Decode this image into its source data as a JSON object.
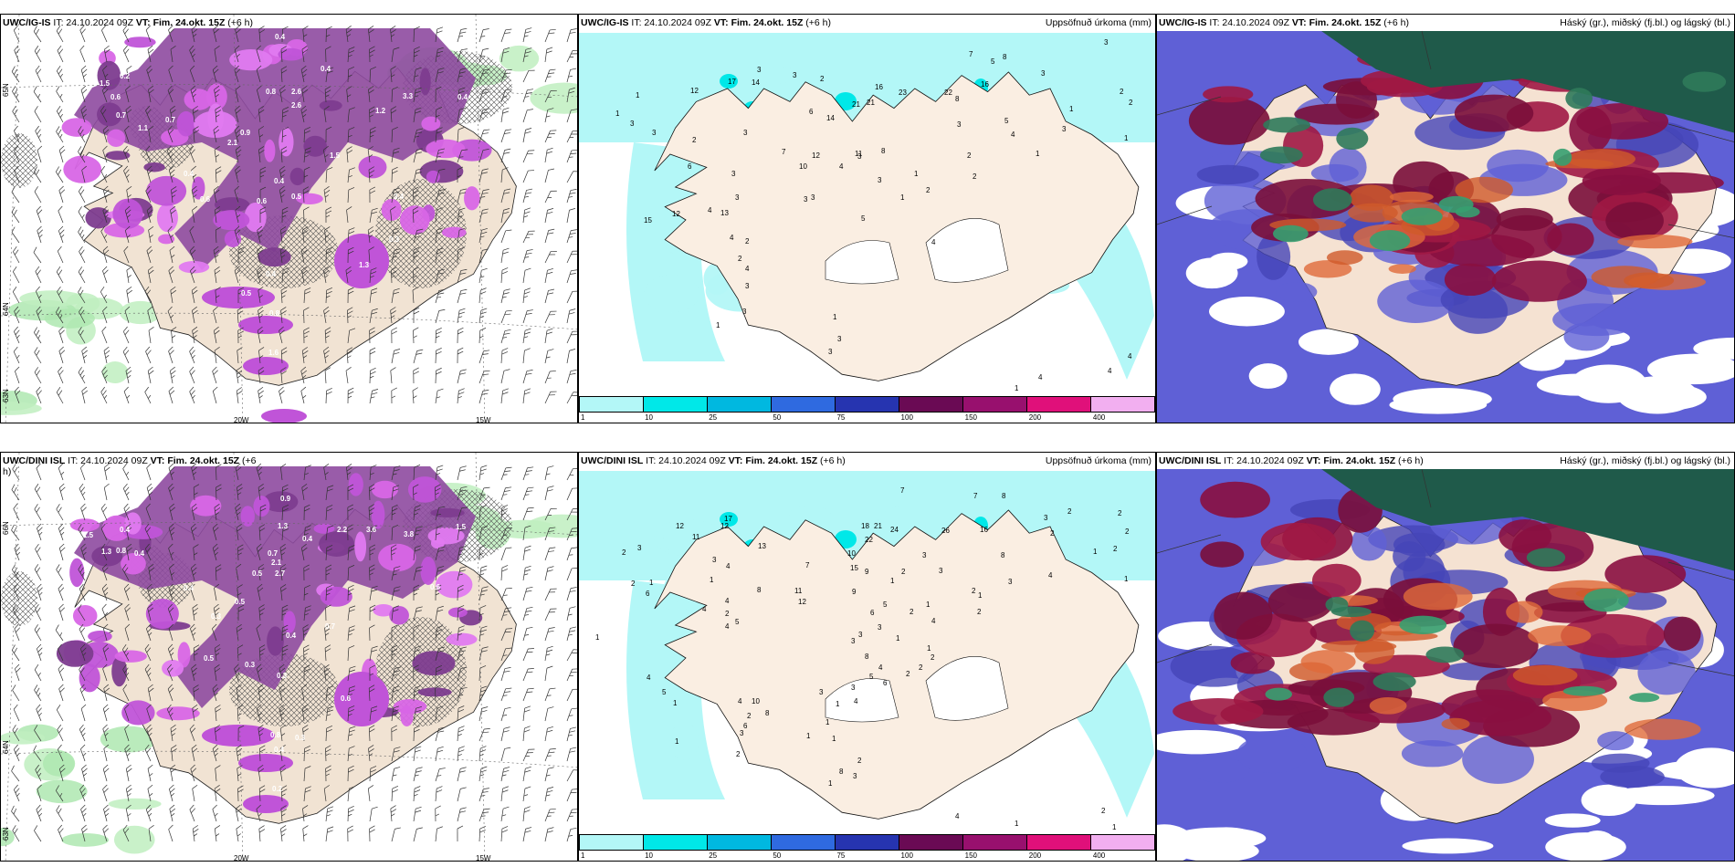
{
  "top": {
    "left": {
      "model": "UWC/IG-IS",
      "it": "IT: 24.10.2024 09Z",
      "vt": "VT: Fim. 24.okt. 15Z",
      "step": "(+6 h)",
      "labels": [
        [
          "0.4",
          300,
          42
        ],
        [
          "0.4",
          350,
          77
        ],
        [
          "0.2",
          130,
          85
        ],
        [
          "1.5",
          108,
          93
        ],
        [
          "0.7",
          126,
          128
        ],
        [
          "0.6",
          120,
          108
        ],
        [
          "0.8",
          290,
          102
        ],
        [
          "2.6",
          318,
          102
        ],
        [
          "3.3",
          440,
          107
        ],
        [
          "0.4",
          500,
          108
        ],
        [
          "1.2",
          410,
          123
        ],
        [
          "2.6",
          318,
          117
        ],
        [
          "1.1",
          150,
          142
        ],
        [
          "0.7",
          180,
          133
        ],
        [
          "0.9",
          262,
          147
        ],
        [
          "0.4",
          200,
          192
        ],
        [
          "0.6",
          218,
          220
        ],
        [
          "0.4",
          299,
          200
        ],
        [
          "0.5",
          318,
          217
        ],
        [
          "1.5",
          360,
          172
        ],
        [
          "2.1",
          248,
          158
        ],
        [
          "0.6",
          280,
          222
        ],
        [
          "3.4",
          430,
          217
        ],
        [
          "1.3",
          392,
          292
        ],
        [
          "0.4",
          290,
          302
        ],
        [
          "0.5",
          263,
          323
        ],
        [
          "0.8",
          294,
          345
        ],
        [
          "1.6",
          293,
          388
        ],
        [
          "0.6",
          310,
          447
        ],
        [
          "0.3",
          425,
          264
        ]
      ],
      "axis": {
        "lon1": "20W",
        "lon2": "15W",
        "lat1": "65N",
        "lat2": "64N",
        "lat3": "63N"
      }
    },
    "middle": {
      "model": "UWC/IG-IS",
      "it": "IT: 24.10.2024 09Z",
      "vt": "VT: Fim. 24.okt. 15Z",
      "step": "(+6 h)",
      "right": "Uppsöfnuð úrkoma (mm)",
      "labels": [
        [
          "3",
          1208,
          48
        ],
        [
          "7",
          1060,
          61
        ],
        [
          "5",
          1084,
          69
        ],
        [
          "8",
          1097,
          64
        ],
        [
          "3",
          1139,
          82
        ],
        [
          "2",
          1225,
          102
        ],
        [
          "2",
          1235,
          114
        ],
        [
          "1",
          1170,
          121
        ],
        [
          "1",
          1230,
          153
        ],
        [
          "1",
          695,
          106
        ],
        [
          "12",
          755,
          101
        ],
        [
          "17",
          796,
          91
        ],
        [
          "14",
          822,
          92
        ],
        [
          "3",
          828,
          78
        ],
        [
          "3",
          867,
          84
        ],
        [
          "2",
          897,
          88
        ],
        [
          "6",
          885,
          124
        ],
        [
          "14",
          904,
          131
        ],
        [
          "21",
          932,
          116
        ],
        [
          "21",
          948,
          114
        ],
        [
          "16",
          957,
          97
        ],
        [
          "23",
          983,
          103
        ],
        [
          "22",
          1033,
          103
        ],
        [
          "16",
          1073,
          94
        ],
        [
          "8",
          1045,
          110
        ],
        [
          "3",
          1047,
          138
        ],
        [
          "4",
          1106,
          149
        ],
        [
          "5",
          1099,
          134
        ],
        [
          "3",
          1162,
          143
        ],
        [
          "1",
          1133,
          170
        ],
        [
          "2",
          1058,
          172
        ],
        [
          "2",
          1064,
          195
        ],
        [
          "1",
          673,
          126
        ],
        [
          "3",
          689,
          137
        ],
        [
          "3",
          713,
          147
        ],
        [
          "11",
          935,
          170
        ],
        [
          "3",
          938,
          173
        ],
        [
          "8",
          964,
          167
        ],
        [
          "4",
          918,
          184
        ],
        [
          "12",
          888,
          172
        ],
        [
          "10",
          874,
          184
        ],
        [
          "3",
          887,
          218
        ],
        [
          "7",
          855,
          168
        ],
        [
          "3",
          813,
          147
        ],
        [
          "2",
          757,
          155
        ],
        [
          "6",
          752,
          184
        ],
        [
          "3",
          800,
          192
        ],
        [
          "3",
          804,
          218
        ],
        [
          "4",
          774,
          232
        ],
        [
          "13",
          788,
          235
        ],
        [
          "12",
          735,
          236
        ],
        [
          "15",
          704,
          243
        ],
        [
          "4",
          798,
          262
        ],
        [
          "2",
          815,
          266
        ],
        [
          "3",
          879,
          220
        ],
        [
          "5",
          942,
          241
        ],
        [
          "1",
          985,
          218
        ],
        [
          "3",
          960,
          199
        ],
        [
          "2",
          1013,
          210
        ],
        [
          "1",
          1000,
          192
        ],
        [
          "4",
          1019,
          267
        ],
        [
          "2",
          807,
          285
        ],
        [
          "4",
          815,
          296
        ],
        [
          "3",
          815,
          315
        ],
        [
          "3",
          812,
          343
        ],
        [
          "1",
          783,
          358
        ],
        [
          "1",
          911,
          349
        ],
        [
          "3",
          916,
          373
        ],
        [
          "3",
          906,
          387
        ],
        [
          "4",
          1136,
          415
        ],
        [
          "4",
          1212,
          408
        ],
        [
          "4",
          1234,
          392
        ],
        [
          "1",
          1110,
          427
        ]
      ]
    },
    "right": {
      "model": "UWC/IG-IS",
      "it": "IT: 24.10.2024 09Z",
      "vt": "VT: Fim. 24.okt. 15Z",
      "step": "(+6 h)",
      "right": "Háský (gr.), miðský (fj.bl.) og lágský (bl.)"
    }
  },
  "bottom": {
    "left": {
      "model": "UWC/DINI ISL",
      "it": "IT: 24.10.2024 09Z",
      "vt": "VT: Fim. 24.okt. 15Z",
      "step": "(+6",
      "step2": "h)",
      "labels": [
        [
          "0.9",
          306,
          548
        ],
        [
          "0.4",
          130,
          582
        ],
        [
          "1.5",
          90,
          588
        ],
        [
          "1.3",
          110,
          606
        ],
        [
          "0.8",
          126,
          605
        ],
        [
          "0.4",
          146,
          608
        ],
        [
          "1.3",
          303,
          578
        ],
        [
          "2.2",
          368,
          582
        ],
        [
          "3.6",
          400,
          582
        ],
        [
          "1.5",
          498,
          579
        ],
        [
          "3.8",
          441,
          587
        ],
        [
          "0.4",
          330,
          592
        ],
        [
          "0.7",
          292,
          608
        ],
        [
          "2.1",
          296,
          618
        ],
        [
          "2.7",
          300,
          630
        ],
        [
          "0.5",
          275,
          630
        ],
        [
          "0.4",
          200,
          646
        ],
        [
          "0.3",
          230,
          677
        ],
        [
          "0.5",
          256,
          661
        ],
        [
          "0.4",
          312,
          698
        ],
        [
          "0.3",
          267,
          730
        ],
        [
          "0.7",
          355,
          688
        ],
        [
          "0.3",
          302,
          742
        ],
        [
          "0.6",
          372,
          767
        ],
        [
          "0.5",
          222,
          723
        ],
        [
          "0.8",
          295,
          807
        ],
        [
          "0.3",
          322,
          810
        ],
        [
          "0.4",
          299,
          823
        ],
        [
          "0.2",
          297,
          866
        ],
        [
          "0.6",
          470,
          645
        ]
      ],
      "axis": {
        "lon1": "20W",
        "lon2": "15W",
        "lat1": "66N",
        "lat2": "64N",
        "lat3": "63N"
      }
    },
    "middle": {
      "model": "UWC/DINI ISL",
      "it": "IT: 24.10.2024 09Z",
      "vt": "VT: Fim. 24.okt. 15Z",
      "step": "(+6 h)",
      "right": "Uppsöfnuð úrkoma (mm)",
      "labels": [
        [
          "7",
          985,
          539
        ],
        [
          "7",
          1065,
          545
        ],
        [
          "8",
          1096,
          545
        ],
        [
          "3",
          1142,
          569
        ],
        [
          "2",
          1168,
          562
        ],
        [
          "2",
          1223,
          564
        ],
        [
          "2",
          1231,
          584
        ],
        [
          "2",
          1218,
          603
        ],
        [
          "1",
          1230,
          636
        ],
        [
          "1",
          1196,
          606
        ],
        [
          "2",
          1149,
          586
        ],
        [
          "12",
          739,
          578
        ],
        [
          "11",
          757,
          590
        ],
        [
          "12",
          788,
          578
        ],
        [
          "17",
          792,
          570
        ],
        [
          "13",
          829,
          600
        ],
        [
          "18",
          942,
          578
        ],
        [
          "21",
          956,
          578
        ],
        [
          "22",
          946,
          593
        ],
        [
          "24",
          974,
          582
        ],
        [
          "26",
          1030,
          583
        ],
        [
          "16",
          1072,
          582
        ],
        [
          "8",
          1095,
          610
        ],
        [
          "10",
          927,
          608
        ],
        [
          "15",
          930,
          624
        ],
        [
          "9",
          946,
          628
        ],
        [
          "3",
          1009,
          610
        ],
        [
          "2",
          986,
          628
        ],
        [
          "1",
          974,
          638
        ],
        [
          "3",
          1027,
          627
        ],
        [
          "4",
          1147,
          632
        ],
        [
          "3",
          1103,
          639
        ],
        [
          "2",
          1063,
          649
        ],
        [
          "2",
          1069,
          672
        ],
        [
          "1",
          1070,
          654
        ],
        [
          "2",
          680,
          607
        ],
        [
          "2",
          690,
          641
        ],
        [
          "3",
          697,
          602
        ],
        [
          "3",
          779,
          615
        ],
        [
          "4",
          794,
          622
        ],
        [
          "1",
          776,
          637
        ],
        [
          "1",
          710,
          640
        ],
        [
          "6",
          706,
          652
        ],
        [
          "2",
          793,
          674
        ],
        [
          "4",
          793,
          660
        ],
        [
          "4",
          768,
          669
        ],
        [
          "4",
          793,
          688
        ],
        [
          "5",
          804,
          683
        ],
        [
          "8",
          828,
          648
        ],
        [
          "7",
          881,
          621
        ],
        [
          "11",
          869,
          649
        ],
        [
          "12",
          873,
          661
        ],
        [
          "9",
          932,
          650
        ],
        [
          "5",
          966,
          664
        ],
        [
          "6",
          952,
          673
        ],
        [
          "3",
          960,
          689
        ],
        [
          "2",
          995,
          672
        ],
        [
          "1",
          1013,
          664
        ],
        [
          "4",
          1019,
          682
        ],
        [
          "3",
          939,
          697
        ],
        [
          "3",
          931,
          704
        ],
        [
          "2",
          991,
          740
        ],
        [
          "8",
          946,
          721
        ],
        [
          "5",
          951,
          743
        ],
        [
          "4",
          961,
          733
        ],
        [
          "6",
          966,
          750
        ],
        [
          "1",
          980,
          701
        ],
        [
          "2",
          1005,
          733
        ],
        [
          "1",
          1014,
          712
        ],
        [
          "2",
          1018,
          722
        ],
        [
          "10",
          822,
          770
        ],
        [
          "8",
          837,
          783
        ],
        [
          "3",
          896,
          760
        ],
        [
          "3",
          931,
          755
        ],
        [
          "4",
          934,
          770
        ],
        [
          "1",
          651,
          700
        ],
        [
          "4",
          707,
          744
        ],
        [
          "5",
          724,
          760
        ],
        [
          "1",
          736,
          772
        ],
        [
          "4",
          807,
          770
        ],
        [
          "2",
          817,
          786
        ],
        [
          "1",
          903,
          793
        ],
        [
          "1",
          914,
          773
        ],
        [
          "6",
          813,
          797
        ],
        [
          "3",
          809,
          805
        ],
        [
          "2",
          805,
          828
        ],
        [
          "1",
          738,
          814
        ],
        [
          "1",
          882,
          808
        ],
        [
          "1",
          910,
          811
        ],
        [
          "8",
          918,
          847
        ],
        [
          "3",
          933,
          852
        ],
        [
          "2",
          938,
          835
        ],
        [
          "1",
          906,
          860
        ],
        [
          "4",
          1045,
          896
        ],
        [
          "1",
          1110,
          904
        ],
        [
          "2",
          1205,
          890
        ],
        [
          "1",
          1217,
          908
        ]
      ]
    },
    "right": {
      "model": "UWC/DINI ISL",
      "it": "IT: 24.10.2024 09Z",
      "vt": "VT: Fim. 24.okt. 15Z",
      "step": "(+6 h)",
      "right": "Háský (gr.), miðský (fj.bl.) og lágský (bl.)"
    }
  },
  "colorbar": {
    "ticks": [
      "1",
      "10",
      "25",
      "50",
      "75",
      "100",
      "150",
      "200",
      "400"
    ],
    "colors": [
      "#b3f7f7",
      "#00e8e8",
      "#00b8e0",
      "#2f6ae0",
      "#2634b0",
      "#6a0a54",
      "#98106e",
      "#e0107a",
      "#f2aff0"
    ]
  }
}
